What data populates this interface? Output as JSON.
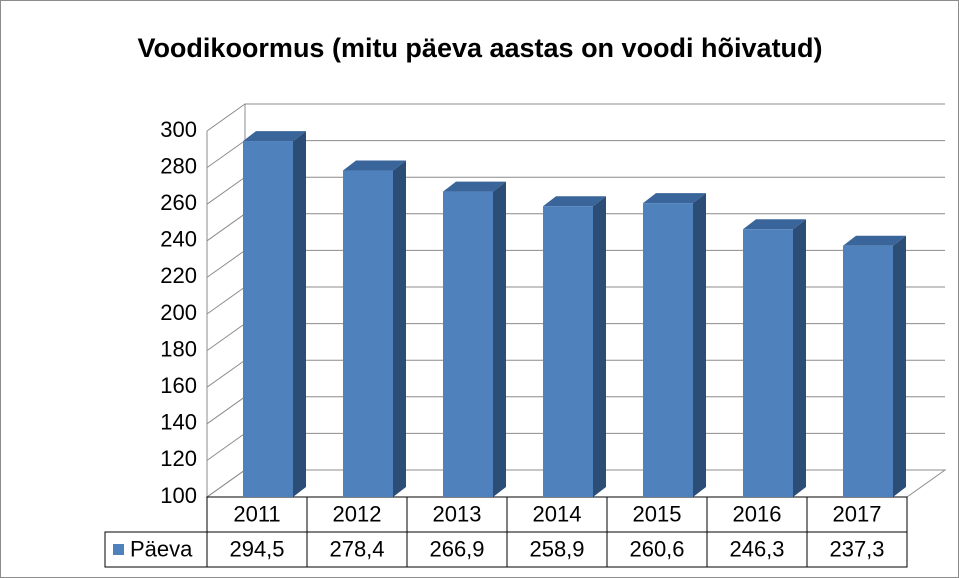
{
  "chart_data": {
    "type": "bar3d",
    "title": "Voodikoormus (mitu päeva aastas on voodi hõivatud)",
    "categories": [
      "2011",
      "2012",
      "2013",
      "2014",
      "2015",
      "2016",
      "2017"
    ],
    "series": [
      {
        "name": "Päeva",
        "color": "#4f81bd",
        "values": [
          294.5,
          278.4,
          266.9,
          258.9,
          260.6,
          246.3,
          237.3
        ],
        "value_labels": [
          "294,5",
          "278,4",
          "266,9",
          "258,9",
          "260,6",
          "246,3",
          "237,3"
        ]
      }
    ],
    "ylim": [
      100,
      300
    ],
    "yticks": [
      100,
      120,
      140,
      160,
      180,
      200,
      220,
      240,
      260,
      280,
      300
    ],
    "grid": true,
    "data_table": true
  }
}
